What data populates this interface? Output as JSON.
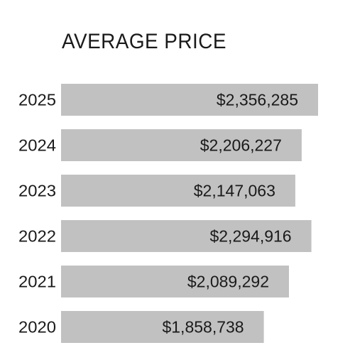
{
  "title": "AVERAGE PRICE",
  "colors": {
    "bar": "#c1c1c1",
    "text": "#1a1a1a",
    "background": "#ffffff"
  },
  "chart_data": {
    "type": "bar",
    "orientation": "horizontal",
    "title": "AVERAGE PRICE",
    "xlabel": "",
    "ylabel": "",
    "categories": [
      "2025",
      "2024",
      "2023",
      "2022",
      "2021",
      "2020"
    ],
    "values": [
      2356285,
      2206227,
      2147063,
      2294916,
      2089292,
      1858738
    ],
    "data_labels": [
      "$2,356,285",
      "$2,206,227",
      "$2,147,063",
      "$2,294,916",
      "$2,089,292",
      "$1,858,738"
    ],
    "xlim": [
      0,
      2356285
    ],
    "grid": false,
    "legend": "none"
  }
}
